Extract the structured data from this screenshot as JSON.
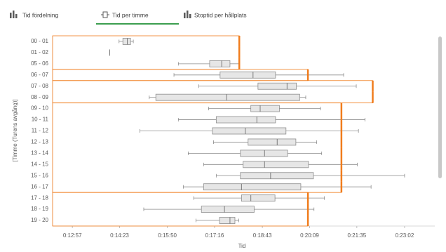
{
  "tabs": [
    "Tid fördelning",
    "Tid per timme",
    "Stoptid per hållplats"
  ],
  "chart_data": {
    "type": "boxplot",
    "x_label": "Tid",
    "y_label": "[Timme (Turens avgång)]",
    "categories": [
      "00 - 01",
      "01 - 02",
      "05 - 06",
      "06 - 07",
      "07 - 08",
      "08 - 09",
      "09 - 10",
      "10 - 11",
      "11 - 12",
      "12 - 13",
      "13 - 14",
      "14 - 15",
      "15 - 16",
      "16 - 17",
      "17 - 18",
      "18 - 19",
      "19 - 20"
    ],
    "min": [
      862,
      845,
      970,
      962,
      1007,
      917,
      1025,
      970,
      900,
      1034,
      988,
      1016,
      1039,
      979,
      998,
      907,
      1002
    ],
    "q1": [
      869,
      845,
      1027,
      1046,
      1115,
      929,
      1102,
      1039,
      1032,
      1097,
      1083,
      1088,
      1083,
      1016,
      1085,
      1012,
      1045
    ],
    "median": [
      877,
      845,
      1049,
      1106,
      1168,
      1058,
      1119,
      1113,
      1092,
      1150,
      1127,
      1127,
      1138,
      1085,
      1102,
      1054,
      1064
    ],
    "q3": [
      883,
      845,
      1064,
      1147,
      1185,
      1191,
      1154,
      1147,
      1166,
      1184,
      1169,
      1207,
      1216,
      1193,
      1146,
      1108,
      1073
    ],
    "max": [
      888,
      845,
      1080,
      1271,
      1294,
      1202,
      1229,
      1310,
      1298,
      1222,
      1231,
      1296,
      1382,
      1321,
      1236,
      1217,
      1080
    ],
    "target": [
      1081,
      1081,
      1081,
      1206,
      1324,
      1324,
      1267,
      1267,
      1267,
      1267,
      1267,
      1267,
      1267,
      1267,
      1206,
      1206,
      1206
    ],
    "box_color": "#e6e6e6",
    "box_stroke": "#8c8c8c",
    "target_color": "#f07c1c",
    "xlim": [
      741,
      1437
    ],
    "xticks": [
      {
        "value": 777,
        "label": "0:12:57"
      },
      {
        "value": 863,
        "label": "0:14:23"
      },
      {
        "value": 950,
        "label": "0:15:50"
      },
      {
        "value": 1036,
        "label": "0:17:16"
      },
      {
        "value": 1123,
        "label": "0:18:43"
      },
      {
        "value": 1209,
        "label": "0:20:09"
      },
      {
        "value": 1295,
        "label": "0:21:35"
      },
      {
        "value": 1382,
        "label": "0:23:02"
      }
    ]
  }
}
